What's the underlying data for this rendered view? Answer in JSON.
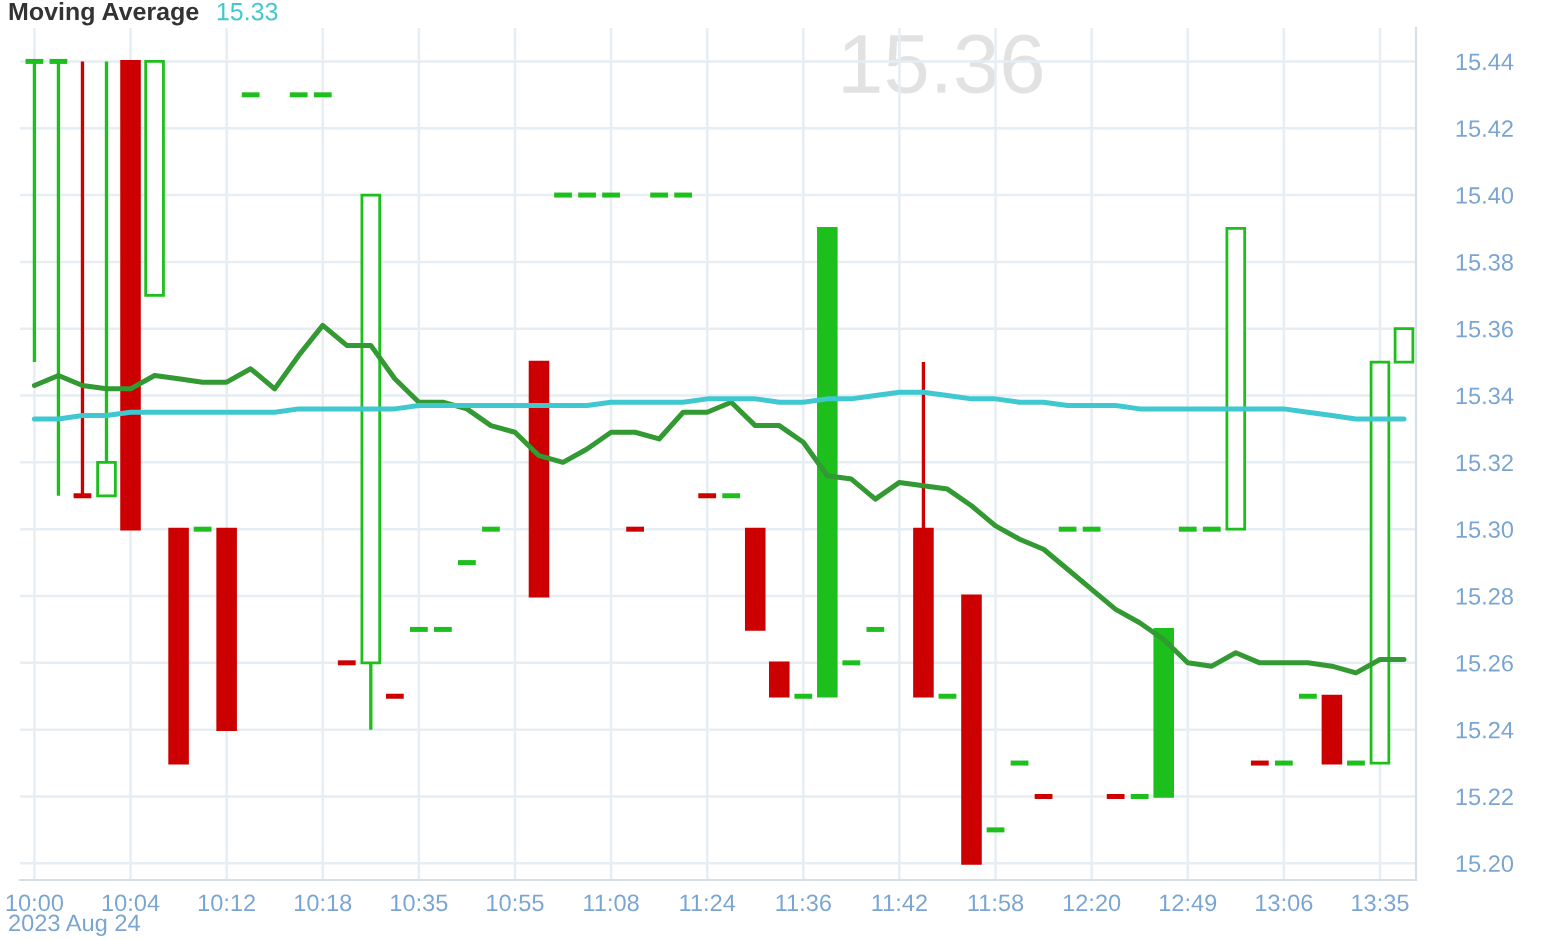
{
  "chart_data": {
    "type": "candlestick",
    "title": "15.36",
    "annotations": [
      "Moving Average",
      "15.33",
      "2023 Aug 24"
    ],
    "categories": [
      "10:00",
      null,
      null,
      null,
      "10:04",
      null,
      null,
      null,
      "10:12",
      null,
      null,
      null,
      "10:18",
      null,
      null,
      null,
      "10:35",
      null,
      null,
      null,
      "10:55",
      null,
      null,
      null,
      "11:08",
      null,
      null,
      null,
      "11:24",
      null,
      null,
      null,
      "11:36",
      null,
      null,
      null,
      "11:42",
      null,
      null,
      null,
      "11:58",
      null,
      null,
      null,
      "12:20",
      null,
      null,
      null,
      "12:49",
      null,
      null,
      null,
      "13:06",
      null,
      null,
      null,
      "13:35",
      null
    ],
    "ohlc": [
      [
        15.44,
        15.44,
        15.35,
        15.44
      ],
      [
        15.44,
        15.44,
        15.31,
        15.44
      ],
      [
        15.31,
        15.44,
        15.31,
        15.31
      ],
      [
        15.31,
        15.44,
        15.31,
        15.32
      ],
      [
        15.44,
        15.44,
        15.3,
        15.3
      ],
      [
        15.37,
        15.44,
        15.37,
        15.44
      ],
      [
        15.3,
        15.3,
        15.23,
        15.23
      ],
      [
        15.3,
        15.3,
        15.3,
        15.3
      ],
      [
        15.3,
        15.3,
        15.24,
        15.24
      ],
      [
        15.43,
        15.43,
        15.43,
        15.43
      ],
      null,
      [
        15.43,
        15.43,
        15.43,
        15.43
      ],
      [
        15.43,
        15.43,
        15.43,
        15.43
      ],
      [
        15.26,
        15.26,
        15.26,
        15.26
      ],
      [
        15.26,
        15.4,
        15.24,
        15.4
      ],
      [
        15.25,
        15.25,
        15.25,
        15.25
      ],
      [
        15.27,
        15.27,
        15.27,
        15.27
      ],
      [
        15.27,
        15.27,
        15.27,
        15.27
      ],
      [
        15.29,
        15.29,
        15.29,
        15.29
      ],
      [
        15.3,
        15.3,
        15.3,
        15.3
      ],
      null,
      [
        15.35,
        15.35,
        15.28,
        15.28
      ],
      [
        15.4,
        15.4,
        15.4,
        15.4
      ],
      [
        15.4,
        15.4,
        15.4,
        15.4
      ],
      [
        15.4,
        15.4,
        15.4,
        15.4
      ],
      [
        15.3,
        15.3,
        15.3,
        15.3
      ],
      [
        15.4,
        15.4,
        15.4,
        15.4
      ],
      [
        15.4,
        15.4,
        15.4,
        15.4
      ],
      [
        15.31,
        15.31,
        15.31,
        15.31
      ],
      [
        15.31,
        15.31,
        15.31,
        15.31
      ],
      [
        15.3,
        15.3,
        15.27,
        15.27
      ],
      [
        15.26,
        15.26,
        15.25,
        15.25
      ],
      [
        15.25,
        15.25,
        15.25,
        15.25
      ],
      [
        15.39,
        15.39,
        15.25,
        15.25
      ],
      [
        15.26,
        15.26,
        15.26,
        15.26
      ],
      [
        15.27,
        15.27,
        15.27,
        15.27
      ],
      null,
      [
        15.3,
        15.35,
        15.25,
        15.25
      ],
      [
        15.25,
        15.25,
        15.25,
        15.25
      ],
      [
        15.28,
        15.28,
        15.2,
        15.2
      ],
      [
        15.21,
        15.21,
        15.21,
        15.21
      ],
      [
        15.23,
        15.23,
        15.23,
        15.23
      ],
      [
        15.22,
        15.22,
        15.22,
        15.22
      ],
      [
        15.3,
        15.3,
        15.3,
        15.3
      ],
      [
        15.3,
        15.3,
        15.3,
        15.3
      ],
      [
        15.22,
        15.22,
        15.22,
        15.22
      ],
      [
        15.22,
        15.22,
        15.22,
        15.22
      ],
      [
        15.27,
        15.27,
        15.22,
        15.22
      ],
      [
        15.3,
        15.3,
        15.3,
        15.3
      ],
      [
        15.3,
        15.3,
        15.3,
        15.3
      ],
      [
        15.3,
        15.39,
        15.3,
        15.39
      ],
      [
        15.23,
        15.23,
        15.23,
        15.23
      ],
      [
        15.23,
        15.23,
        15.23,
        15.23
      ],
      [
        15.25,
        15.25,
        15.25,
        15.25
      ],
      [
        15.25,
        15.25,
        15.23,
        15.23
      ],
      [
        15.23,
        15.23,
        15.23,
        15.23
      ],
      [
        15.23,
        15.35,
        15.23,
        15.35
      ],
      [
        15.35,
        15.36,
        15.35,
        15.36
      ]
    ],
    "colors": [
      "#1dbf1d",
      "#1dbf1d",
      "#cc0000",
      "#1dbf1d",
      "#cc0000",
      "#1dbf1d",
      "#cc0000",
      "#1dbf1d",
      "#cc0000",
      "#1dbf1d",
      null,
      "#1dbf1d",
      "#1dbf1d",
      "#cc0000",
      "#1dbf1d",
      "#cc0000",
      "#1dbf1d",
      "#1dbf1d",
      "#1dbf1d",
      "#1dbf1d",
      null,
      "#cc0000",
      "#1dbf1d",
      "#1dbf1d",
      "#1dbf1d",
      "#cc0000",
      "#1dbf1d",
      "#1dbf1d",
      "#cc0000",
      "#1dbf1d",
      "#cc0000",
      "#cc0000",
      "#1dbf1d",
      "#1dbf1d",
      "#1dbf1d",
      "#1dbf1d",
      null,
      "#cc0000",
      "#1dbf1d",
      "#cc0000",
      "#1dbf1d",
      "#1dbf1d",
      "#cc0000",
      "#1dbf1d",
      "#1dbf1d",
      "#cc0000",
      "#1dbf1d",
      "#1dbf1d",
      "#1dbf1d",
      "#1dbf1d",
      "#1dbf1d",
      "#cc0000",
      "#1dbf1d",
      "#1dbf1d",
      "#cc0000",
      "#1dbf1d",
      "#1dbf1d",
      "#1dbf1d"
    ],
    "series": [
      {
        "type": "line",
        "color": "#339933",
        "values": [
          15.343,
          15.346,
          15.343,
          15.342,
          15.342,
          15.346,
          15.345,
          15.344,
          15.344,
          15.348,
          15.342,
          15.352,
          15.361,
          15.355,
          15.355,
          15.345,
          15.338,
          15.338,
          15.336,
          15.331,
          15.329,
          15.322,
          15.32,
          15.324,
          15.329,
          15.329,
          15.327,
          15.335,
          15.335,
          15.338,
          15.331,
          15.331,
          15.326,
          15.316,
          15.315,
          15.309,
          15.314,
          15.313,
          15.312,
          15.307,
          15.301,
          15.297,
          15.294,
          15.288,
          15.282,
          15.276,
          15.272,
          15.267,
          15.26,
          15.259,
          15.263,
          15.26,
          15.26,
          15.26,
          15.259,
          15.257,
          15.261,
          15.261
        ]
      },
      {
        "type": "line",
        "color": "#40c8d0",
        "values": [
          15.333,
          15.333,
          15.334,
          15.334,
          15.335,
          15.335,
          15.335,
          15.335,
          15.335,
          15.335,
          15.335,
          15.336,
          15.336,
          15.336,
          15.336,
          15.336,
          15.337,
          15.337,
          15.337,
          15.337,
          15.337,
          15.337,
          15.337,
          15.337,
          15.338,
          15.338,
          15.338,
          15.338,
          15.339,
          15.339,
          15.339,
          15.338,
          15.338,
          15.339,
          15.339,
          15.34,
          15.341,
          15.341,
          15.34,
          15.339,
          15.339,
          15.338,
          15.338,
          15.337,
          15.337,
          15.337,
          15.336,
          15.336,
          15.336,
          15.336,
          15.336,
          15.336,
          15.336,
          15.335,
          15.334,
          15.333,
          15.333,
          15.333
        ]
      }
    ],
    "ylim": [
      15.195,
      15.45
    ],
    "yticks": [
      {
        "value": 15.2,
        "label": "15.20"
      },
      {
        "value": 15.22,
        "label": "15.22"
      },
      {
        "value": 15.24,
        "label": "15.24"
      },
      {
        "value": 15.26,
        "label": "15.26"
      },
      {
        "value": 15.28,
        "label": "15.28"
      },
      {
        "value": 15.3,
        "label": "15.30"
      },
      {
        "value": 15.32,
        "label": "15.32"
      },
      {
        "value": 15.34,
        "label": "15.34"
      },
      {
        "value": 15.36,
        "label": "15.36"
      },
      {
        "value": 15.38,
        "label": "15.38"
      },
      {
        "value": 15.4,
        "label": "15.40"
      },
      {
        "value": 15.42,
        "label": "15.42"
      },
      {
        "value": 15.44,
        "label": "15.44"
      }
    ],
    "grid": true
  }
}
